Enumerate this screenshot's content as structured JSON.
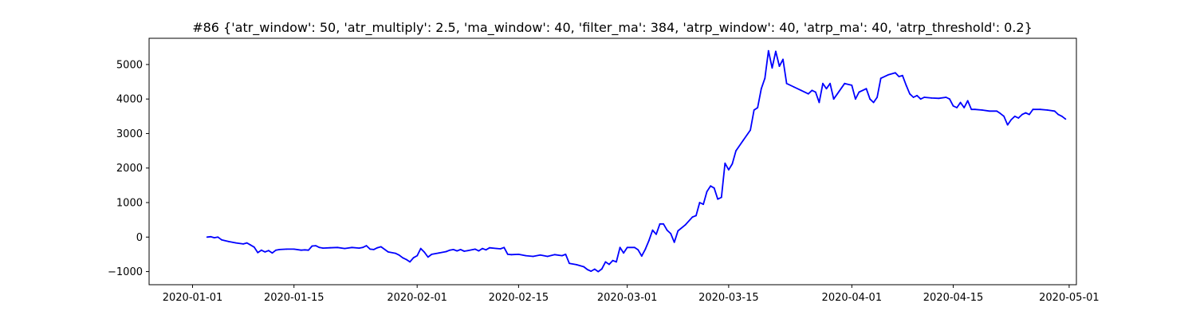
{
  "chart_data": {
    "type": "line",
    "title": "#86 {'atr_window': 50, 'atr_multiply': 2.5, 'ma_window': 40, 'filter_ma': 384, 'atrp_window': 40, 'atrp_ma': 40, 'atrp_threshold': 0.2}",
    "xlabel": "",
    "ylabel": "",
    "x_range": [
      "2019-12-26",
      "2020-05-02"
    ],
    "ylim": [
      -1380,
      5760
    ],
    "grid": false,
    "line_color": "#0000ff",
    "x_ticks": [
      {
        "value": "2020-01-01",
        "label": "2020-01-01"
      },
      {
        "value": "2020-01-15",
        "label": "2020-01-15"
      },
      {
        "value": "2020-02-01",
        "label": "2020-02-01"
      },
      {
        "value": "2020-02-15",
        "label": "2020-02-15"
      },
      {
        "value": "2020-03-01",
        "label": "2020-03-01"
      },
      {
        "value": "2020-03-15",
        "label": "2020-03-15"
      },
      {
        "value": "2020-04-01",
        "label": "2020-04-01"
      },
      {
        "value": "2020-04-15",
        "label": "2020-04-15"
      },
      {
        "value": "2020-05-01",
        "label": "2020-05-01"
      }
    ],
    "y_ticks": [
      {
        "value": -1000,
        "label": "−1000"
      },
      {
        "value": 0,
        "label": "0"
      },
      {
        "value": 1000,
        "label": "1000"
      },
      {
        "value": 2000,
        "label": "2000"
      },
      {
        "value": 3000,
        "label": "3000"
      },
      {
        "value": 4000,
        "label": "4000"
      },
      {
        "value": 5000,
        "label": "5000"
      }
    ],
    "series": [
      {
        "points": [
          [
            "2020-01-03",
            0
          ],
          [
            "2020-01-03T12",
            10
          ],
          [
            "2020-01-04",
            -20
          ],
          [
            "2020-01-04T12",
            0
          ],
          [
            "2020-01-05",
            -80
          ],
          [
            "2020-01-06",
            -130
          ],
          [
            "2020-01-07",
            -170
          ],
          [
            "2020-01-08",
            -200
          ],
          [
            "2020-01-08T12",
            -170
          ],
          [
            "2020-01-09",
            -230
          ],
          [
            "2020-01-09T12",
            -290
          ],
          [
            "2020-01-10",
            -450
          ],
          [
            "2020-01-10T12",
            -380
          ],
          [
            "2020-01-11",
            -430
          ],
          [
            "2020-01-11T12",
            -390
          ],
          [
            "2020-01-12",
            -460
          ],
          [
            "2020-01-12T12",
            -380
          ],
          [
            "2020-01-13",
            -360
          ],
          [
            "2020-01-14",
            -350
          ],
          [
            "2020-01-15",
            -350
          ],
          [
            "2020-01-16",
            -380
          ],
          [
            "2020-01-16T12",
            -370
          ],
          [
            "2020-01-17",
            -380
          ],
          [
            "2020-01-17T12",
            -260
          ],
          [
            "2020-01-18",
            -250
          ],
          [
            "2020-01-18T12",
            -300
          ],
          [
            "2020-01-19",
            -320
          ],
          [
            "2020-01-20",
            -310
          ],
          [
            "2020-01-21",
            -300
          ],
          [
            "2020-01-22",
            -330
          ],
          [
            "2020-01-23",
            -300
          ],
          [
            "2020-01-24",
            -320
          ],
          [
            "2020-01-24T12",
            -300
          ],
          [
            "2020-01-25",
            -250
          ],
          [
            "2020-01-25T12",
            -350
          ],
          [
            "2020-01-26",
            -360
          ],
          [
            "2020-01-26T12",
            -310
          ],
          [
            "2020-01-27",
            -280
          ],
          [
            "2020-01-28",
            -430
          ],
          [
            "2020-01-29",
            -470
          ],
          [
            "2020-01-29T12",
            -520
          ],
          [
            "2020-01-30",
            -600
          ],
          [
            "2020-01-30T12",
            -650
          ],
          [
            "2020-01-31",
            -720
          ],
          [
            "2020-01-31T12",
            -600
          ],
          [
            "2020-02-01",
            -540
          ],
          [
            "2020-02-01T12",
            -330
          ],
          [
            "2020-02-02",
            -440
          ],
          [
            "2020-02-02T12",
            -580
          ],
          [
            "2020-02-03",
            -500
          ],
          [
            "2020-02-04",
            -460
          ],
          [
            "2020-02-05",
            -420
          ],
          [
            "2020-02-05T12",
            -380
          ],
          [
            "2020-02-06",
            -360
          ],
          [
            "2020-02-06T12",
            -400
          ],
          [
            "2020-02-07",
            -360
          ],
          [
            "2020-02-07T12",
            -410
          ],
          [
            "2020-02-08",
            -390
          ],
          [
            "2020-02-09",
            -350
          ],
          [
            "2020-02-09T12",
            -400
          ],
          [
            "2020-02-10",
            -330
          ],
          [
            "2020-02-10T12",
            -370
          ],
          [
            "2020-02-11",
            -310
          ],
          [
            "2020-02-12",
            -330
          ],
          [
            "2020-02-12T12",
            -340
          ],
          [
            "2020-02-13",
            -300
          ],
          [
            "2020-02-13T12",
            -500
          ],
          [
            "2020-02-14",
            -510
          ],
          [
            "2020-02-15",
            -500
          ],
          [
            "2020-02-16",
            -540
          ],
          [
            "2020-02-17",
            -560
          ],
          [
            "2020-02-18",
            -520
          ],
          [
            "2020-02-19",
            -560
          ],
          [
            "2020-02-20",
            -510
          ],
          [
            "2020-02-21",
            -540
          ],
          [
            "2020-02-21T12",
            -500
          ],
          [
            "2020-02-22",
            -760
          ],
          [
            "2020-02-23",
            -800
          ],
          [
            "2020-02-24",
            -860
          ],
          [
            "2020-02-24T12",
            -940
          ],
          [
            "2020-02-25",
            -990
          ],
          [
            "2020-02-25T12",
            -930
          ],
          [
            "2020-02-26",
            -1000
          ],
          [
            "2020-02-26T12",
            -920
          ],
          [
            "2020-02-27",
            -720
          ],
          [
            "2020-02-27T12",
            -790
          ],
          [
            "2020-02-28",
            -680
          ],
          [
            "2020-02-28T12",
            -720
          ],
          [
            "2020-02-29",
            -300
          ],
          [
            "2020-02-29T12",
            -460
          ],
          [
            "2020-03-01",
            -300
          ],
          [
            "2020-03-02",
            -300
          ],
          [
            "2020-03-02T12",
            -370
          ],
          [
            "2020-03-03",
            -550
          ],
          [
            "2020-03-03T12",
            -350
          ],
          [
            "2020-03-04",
            -100
          ],
          [
            "2020-03-04T12",
            200
          ],
          [
            "2020-03-05",
            80
          ],
          [
            "2020-03-05T12",
            380
          ],
          [
            "2020-03-06",
            380
          ],
          [
            "2020-03-06T12",
            200
          ],
          [
            "2020-03-07",
            100
          ],
          [
            "2020-03-07T12",
            -150
          ],
          [
            "2020-03-08",
            180
          ],
          [
            "2020-03-09",
            350
          ],
          [
            "2020-03-10",
            580
          ],
          [
            "2020-03-10T12",
            620
          ],
          [
            "2020-03-11",
            1000
          ],
          [
            "2020-03-11T12",
            950
          ],
          [
            "2020-03-12",
            1320
          ],
          [
            "2020-03-12T12",
            1480
          ],
          [
            "2020-03-13",
            1420
          ],
          [
            "2020-03-13T12",
            1100
          ],
          [
            "2020-03-14",
            1150
          ],
          [
            "2020-03-14T12",
            2140
          ],
          [
            "2020-03-15",
            1950
          ],
          [
            "2020-03-15T12",
            2120
          ],
          [
            "2020-03-16",
            2500
          ],
          [
            "2020-03-17",
            2800
          ],
          [
            "2020-03-18",
            3100
          ],
          [
            "2020-03-18T12",
            3680
          ],
          [
            "2020-03-19",
            3750
          ],
          [
            "2020-03-19T12",
            4300
          ],
          [
            "2020-03-20",
            4600
          ],
          [
            "2020-03-20T12",
            5400
          ],
          [
            "2020-03-21",
            4900
          ],
          [
            "2020-03-21T12",
            5380
          ],
          [
            "2020-03-22",
            4950
          ],
          [
            "2020-03-22T12",
            5150
          ],
          [
            "2020-03-23",
            4450
          ],
          [
            "2020-03-24",
            4350
          ],
          [
            "2020-03-25",
            4250
          ],
          [
            "2020-03-26",
            4150
          ],
          [
            "2020-03-26T12",
            4250
          ],
          [
            "2020-03-27",
            4200
          ],
          [
            "2020-03-27T12",
            3900
          ],
          [
            "2020-03-28",
            4450
          ],
          [
            "2020-03-28T12",
            4300
          ],
          [
            "2020-03-29",
            4450
          ],
          [
            "2020-03-29T12",
            4000
          ],
          [
            "2020-03-30",
            4150
          ],
          [
            "2020-03-31",
            4450
          ],
          [
            "2020-04-01",
            4400
          ],
          [
            "2020-04-01T12",
            4000
          ],
          [
            "2020-04-02",
            4200
          ],
          [
            "2020-04-03",
            4300
          ],
          [
            "2020-04-03T12",
            4000
          ],
          [
            "2020-04-04",
            3900
          ],
          [
            "2020-04-04T12",
            4050
          ],
          [
            "2020-04-05",
            4600
          ],
          [
            "2020-04-06",
            4700
          ],
          [
            "2020-04-07",
            4760
          ],
          [
            "2020-04-07T12",
            4650
          ],
          [
            "2020-04-08",
            4680
          ],
          [
            "2020-04-08T12",
            4400
          ],
          [
            "2020-04-09",
            4150
          ],
          [
            "2020-04-09T12",
            4050
          ],
          [
            "2020-04-10",
            4100
          ],
          [
            "2020-04-10T12",
            4000
          ],
          [
            "2020-04-11",
            4050
          ],
          [
            "2020-04-12",
            4030
          ],
          [
            "2020-04-13",
            4020
          ],
          [
            "2020-04-14",
            4050
          ],
          [
            "2020-04-14T12",
            4000
          ],
          [
            "2020-04-15",
            3800
          ],
          [
            "2020-04-15T12",
            3750
          ],
          [
            "2020-04-16",
            3900
          ],
          [
            "2020-04-16T12",
            3750
          ],
          [
            "2020-04-17",
            3950
          ],
          [
            "2020-04-17T12",
            3700
          ],
          [
            "2020-04-18",
            3700
          ],
          [
            "2020-04-19",
            3680
          ],
          [
            "2020-04-20",
            3650
          ],
          [
            "2020-04-21",
            3650
          ],
          [
            "2020-04-21T12",
            3580
          ],
          [
            "2020-04-22",
            3500
          ],
          [
            "2020-04-22T12",
            3250
          ],
          [
            "2020-04-23",
            3400
          ],
          [
            "2020-04-23T12",
            3500
          ],
          [
            "2020-04-24",
            3450
          ],
          [
            "2020-04-24T12",
            3550
          ],
          [
            "2020-04-25",
            3600
          ],
          [
            "2020-04-25T12",
            3550
          ],
          [
            "2020-04-26",
            3700
          ],
          [
            "2020-04-27",
            3700
          ],
          [
            "2020-04-28",
            3680
          ],
          [
            "2020-04-29",
            3650
          ],
          [
            "2020-04-29T12",
            3550
          ],
          [
            "2020-04-30",
            3500
          ],
          [
            "2020-04-30T12",
            3420
          ]
        ]
      }
    ]
  }
}
